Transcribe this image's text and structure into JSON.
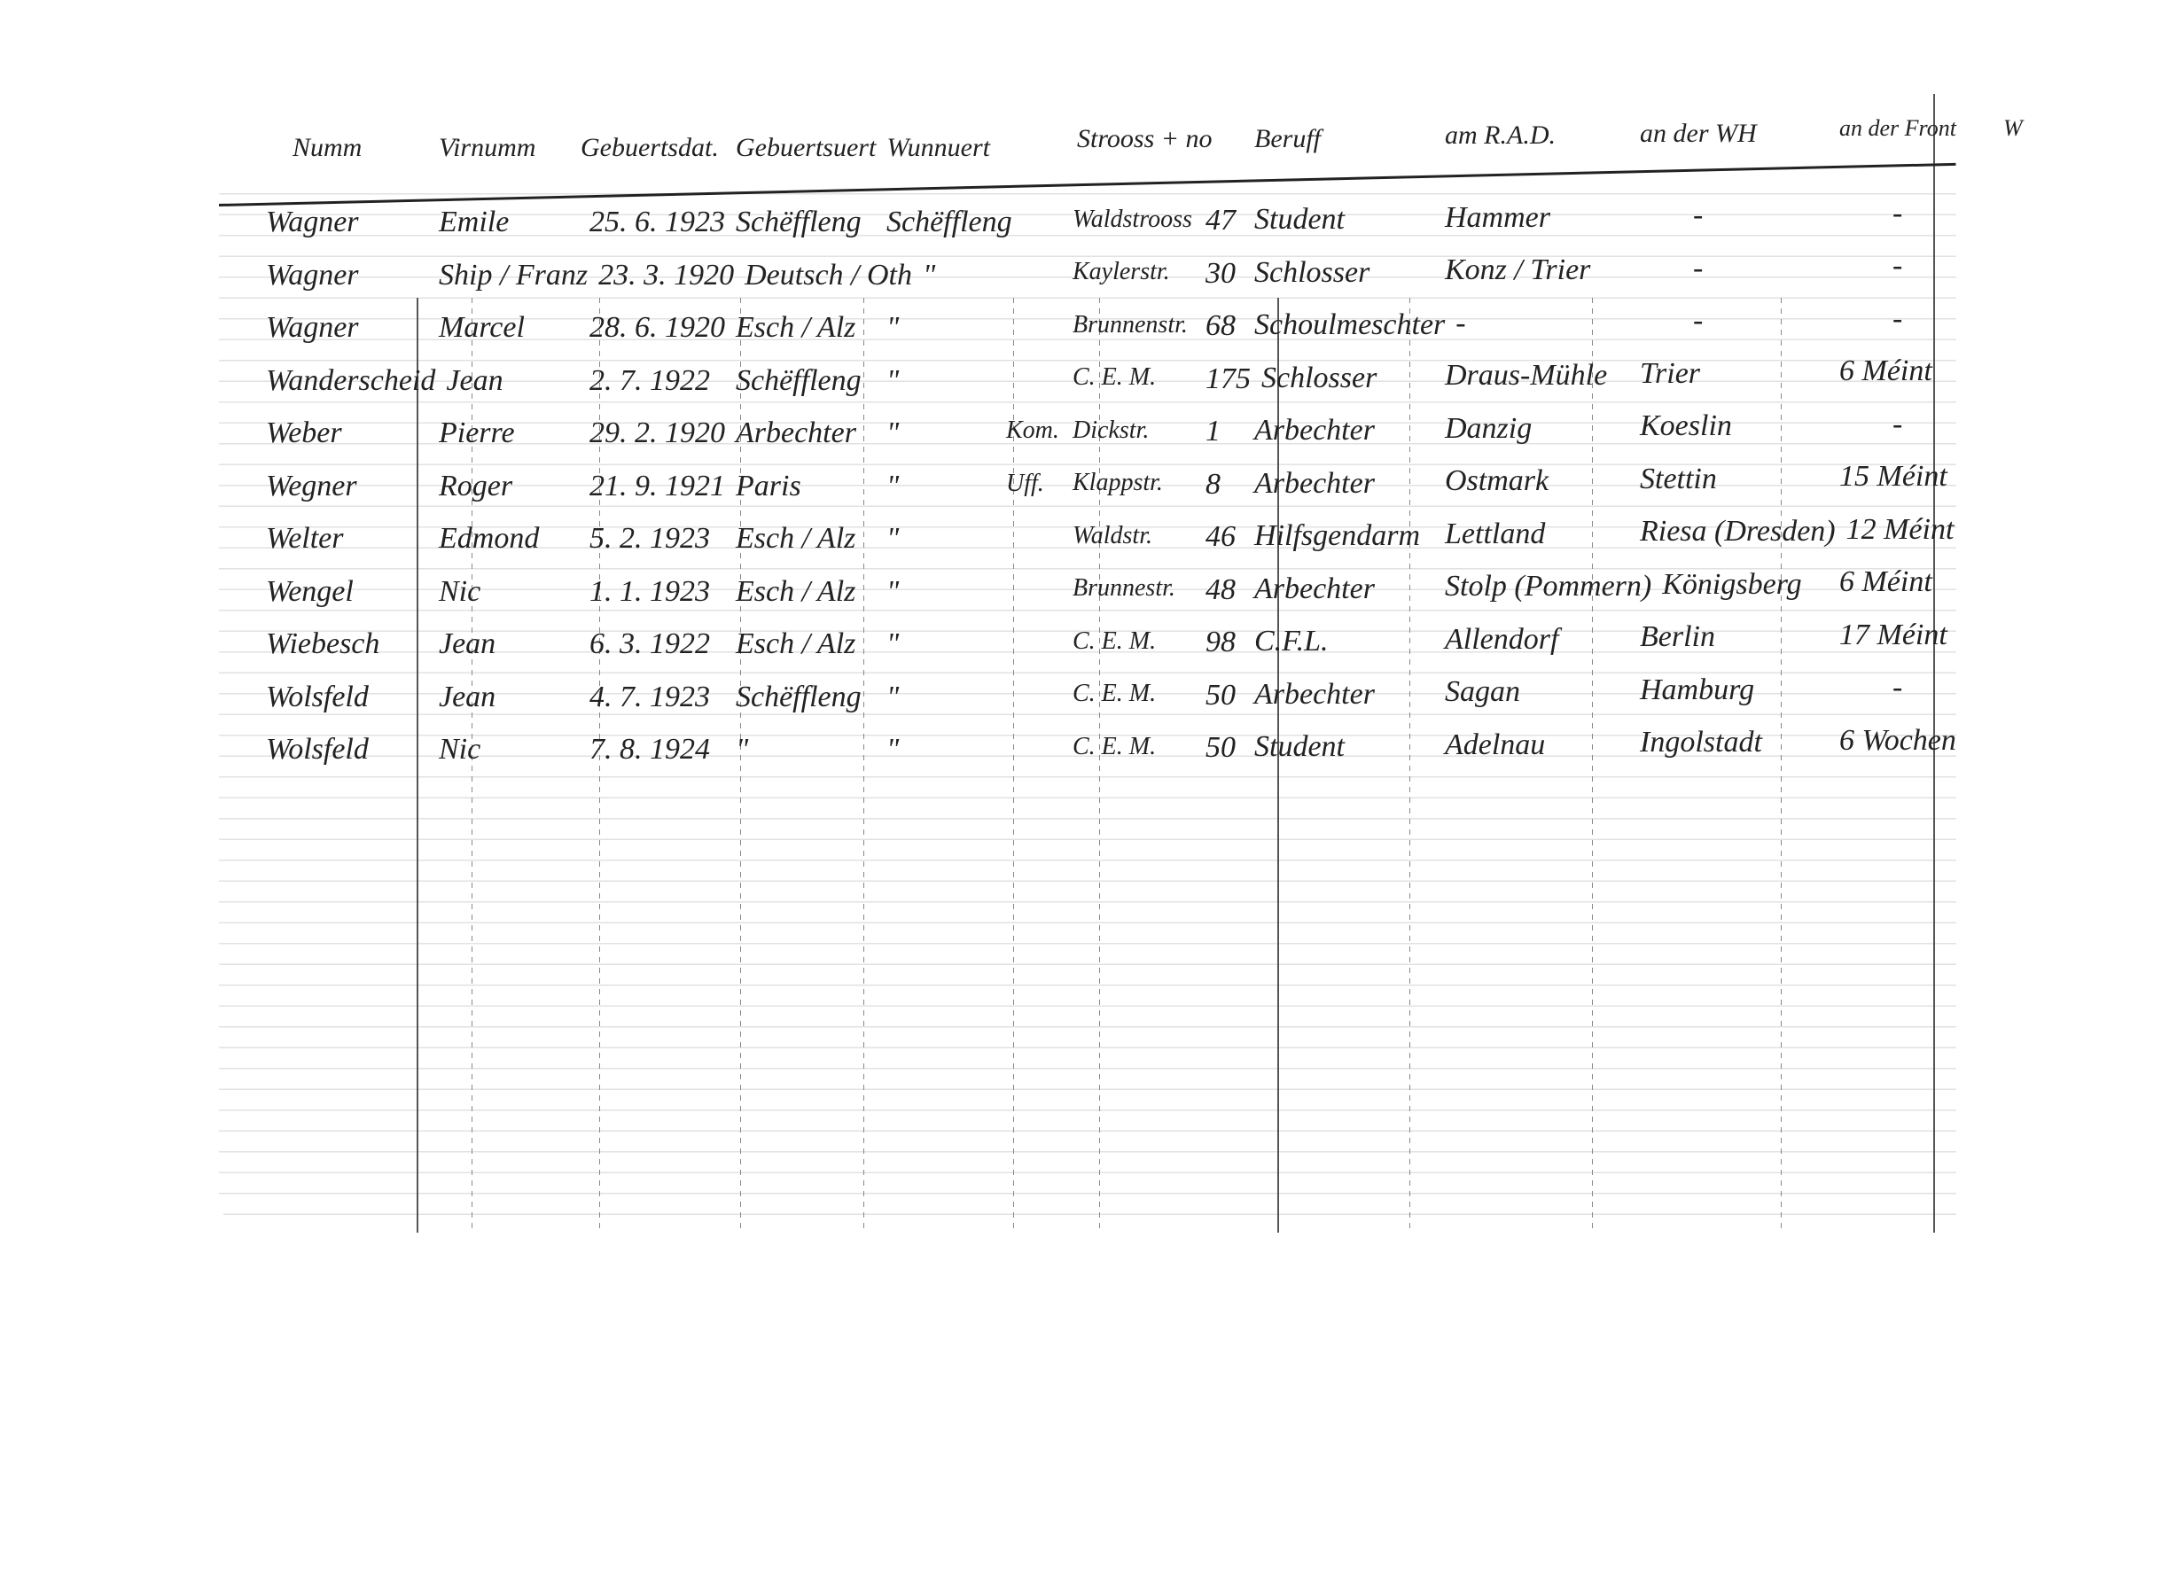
{
  "headers": {
    "name": "Numm",
    "first_name": "Virnumm",
    "birth_date": "Gebuertsdat.",
    "birth_place": "Gebuertsuert",
    "residence": "Wunnuert",
    "rank": "",
    "street": "Strooss + no",
    "occupation": "Beruff",
    "rad": "am R.A.D.",
    "wh": "an der WH",
    "front": "an der Front",
    "cut_off": "W"
  },
  "rows": [
    {
      "name": "Wagner",
      "first_name": "Emile",
      "birth_date": "25. 6. 1923",
      "birth_place": "Schëffleng",
      "residence": "Schëffleng",
      "rank": "",
      "street": "Waldstrooss",
      "no": "47",
      "occupation": "Student",
      "rad": "Hammer",
      "wh": "-",
      "front": "-"
    },
    {
      "name": "Wagner",
      "first_name": "Ship / Franz",
      "birth_date": "23. 3. 1920",
      "birth_place": "Deutsch / Oth",
      "residence": "\"",
      "rank": "",
      "street": "Kaylerstr.",
      "no": "30",
      "occupation": "Schlosser",
      "rad": "Konz / Trier",
      "wh": "-",
      "front": "-"
    },
    {
      "name": "Wagner",
      "first_name": "Marcel",
      "birth_date": "28. 6. 1920",
      "birth_place": "Esch / Alz",
      "residence": "\"",
      "rank": "",
      "street": "Brunnenstr.",
      "no": "68",
      "occupation": "Schoulmeschter",
      "rad": "-",
      "wh": "-",
      "front": "-"
    },
    {
      "name": "Wanderscheid",
      "first_name": "Jean",
      "birth_date": "2. 7. 1922",
      "birth_place": "Schëffleng",
      "residence": "\"",
      "rank": "",
      "street": "C. E. M.",
      "no": "175",
      "occupation": "Schlosser",
      "rad": "Draus-Mühle",
      "wh": "Trier",
      "front": "6 Méint"
    },
    {
      "name": "Weber",
      "first_name": "Pierre",
      "birth_date": "29. 2. 1920",
      "birth_place": "Arbechter",
      "residence": "\"",
      "rank": "Kom.",
      "street": "Dickstr.",
      "no": "1",
      "occupation": "Arbechter",
      "rad": "Danzig",
      "wh": "Koeslin",
      "front": "-"
    },
    {
      "name": "Wegner",
      "first_name": "Roger",
      "birth_date": "21. 9. 1921",
      "birth_place": "Paris",
      "residence": "\"",
      "rank": "Uff.",
      "street": "Klappstr.",
      "no": "8",
      "occupation": "Arbechter",
      "rad": "Ostmark",
      "wh": "Stettin",
      "front": "15 Méint"
    },
    {
      "name": "Welter",
      "first_name": "Edmond",
      "birth_date": "5. 2. 1923",
      "birth_place": "Esch / Alz",
      "residence": "\"",
      "rank": "",
      "street": "Waldstr.",
      "no": "46",
      "occupation": "Hilfsgendarm",
      "rad": "Lettland",
      "wh": "Riesa (Dresden)",
      "front": "12 Méint"
    },
    {
      "name": "Wengel",
      "first_name": "Nic",
      "birth_date": "1. 1. 1923",
      "birth_place": "Esch / Alz",
      "residence": "\"",
      "rank": "",
      "street": "Brunnestr.",
      "no": "48",
      "occupation": "Arbechter",
      "rad": "Stolp (Pommern)",
      "wh": "Königsberg",
      "front": "6 Méint"
    },
    {
      "name": "Wiebesch",
      "first_name": "Jean",
      "birth_date": "6. 3. 1922",
      "birth_place": "Esch / Alz",
      "residence": "\"",
      "rank": "",
      "street": "C. E. M.",
      "no": "98",
      "occupation": "C.F.L.",
      "rad": "Allendorf",
      "wh": "Berlin",
      "front": "17 Méint"
    },
    {
      "name": "Wolsfeld",
      "first_name": "Jean",
      "birth_date": "4. 7. 1923",
      "birth_place": "Schëffleng",
      "residence": "\"",
      "rank": "",
      "street": "C. E. M.",
      "no": "50",
      "occupation": "Arbechter",
      "rad": "Sagan",
      "wh": "Hamburg",
      "front": "-"
    },
    {
      "name": "Wolsfeld",
      "first_name": "Nic",
      "birth_date": "7. 8. 1924",
      "birth_place": "\"",
      "residence": "\"",
      "rank": "",
      "street": "C. E. M.",
      "no": "50",
      "occupation": "Student",
      "rad": "Adelnau",
      "wh": "Ingolstadt",
      "front": "6 Wochen"
    }
  ]
}
